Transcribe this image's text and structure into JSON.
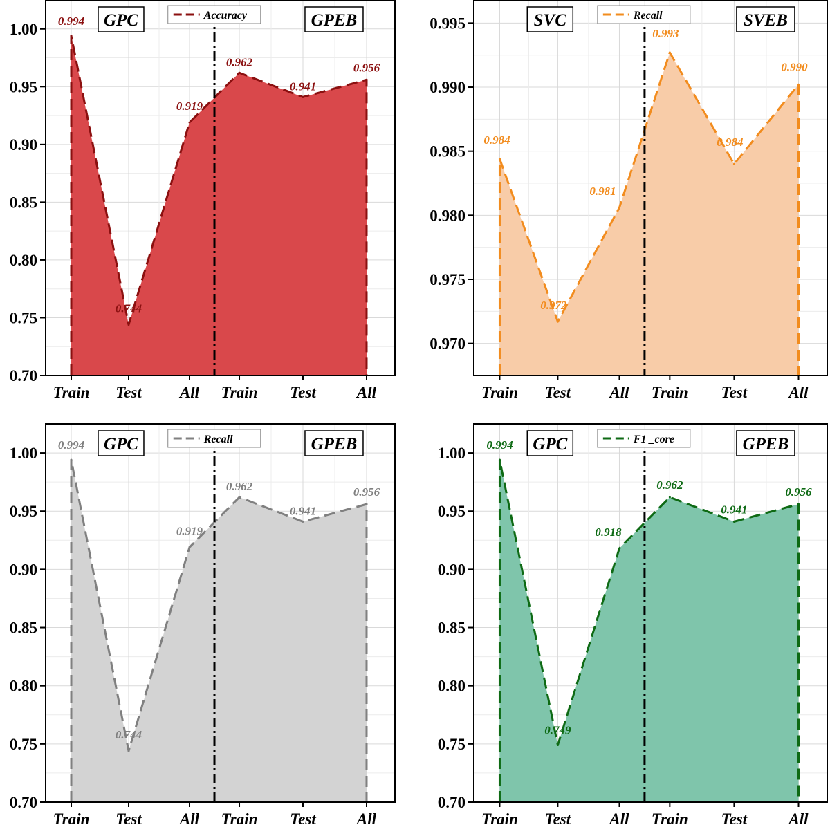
{
  "chart_data": [
    {
      "type": "area",
      "categories": [
        "Train",
        "Test",
        "All",
        "Train",
        "Test",
        "All"
      ],
      "group_labels": [
        "GPC",
        "GPEB"
      ],
      "series": [
        {
          "name": "Accuracy",
          "values": [
            0.994,
            0.744,
            0.919,
            0.962,
            0.941,
            0.956
          ]
        }
      ],
      "data_labels": [
        "0.994",
        "0.744",
        "0.919",
        "0.962",
        "0.941",
        "0.956"
      ],
      "ylim": [
        0.7,
        1.025
      ],
      "yticks": [
        "0.70",
        "0.75",
        "0.80",
        "0.85",
        "0.90",
        "0.95",
        "1.00"
      ],
      "divider_between": [
        2,
        3
      ],
      "line_color": "#8b1010",
      "fill_color": "#d9484b",
      "label_color": "#8b1010",
      "legend_position": "top-center",
      "grid": true
    },
    {
      "type": "area",
      "categories": [
        "Train",
        "Test",
        "All",
        "Train",
        "Test",
        "All"
      ],
      "group_labels": [
        "SVC",
        "SVEB"
      ],
      "series": [
        {
          "name": "Recall",
          "values": [
            0.9844,
            0.9717,
            0.9806,
            0.9927,
            0.984,
            0.9902
          ]
        }
      ],
      "data_labels": [
        "0.984",
        "0.972",
        "0.981",
        "0.993",
        "0.984",
        "0.990"
      ],
      "ylim": [
        0.9675,
        0.9968
      ],
      "yticks": [
        "0.970",
        "0.975",
        "0.980",
        "0.985",
        "0.990",
        "0.995"
      ],
      "divider_between": [
        2,
        3
      ],
      "line_color": "#f28c1e",
      "fill_color": "#f8cca8",
      "label_color": "#f28c1e",
      "legend_position": "top-center",
      "grid": true
    },
    {
      "type": "area",
      "categories": [
        "Train",
        "Test",
        "All",
        "Train",
        "Test",
        "All"
      ],
      "group_labels": [
        "GPC",
        "GPEB"
      ],
      "series": [
        {
          "name": "Recall",
          "values": [
            0.994,
            0.744,
            0.919,
            0.962,
            0.941,
            0.956
          ]
        }
      ],
      "data_labels": [
        "0.994",
        "0.744",
        "0.919",
        "0.962",
        "0.941",
        "0.956"
      ],
      "ylim": [
        0.7,
        1.025
      ],
      "yticks": [
        "0.70",
        "0.75",
        "0.80",
        "0.85",
        "0.90",
        "0.95",
        "1.00"
      ],
      "divider_between": [
        2,
        3
      ],
      "line_color": "#808080",
      "fill_color": "#d3d3d3",
      "label_color": "#808080",
      "legend_position": "top-center",
      "grid": true
    },
    {
      "type": "area",
      "categories": [
        "Train",
        "Test",
        "All",
        "Train",
        "Test",
        "All"
      ],
      "group_labels": [
        "GPC",
        "GPEB"
      ],
      "series": [
        {
          "name": "F1 _core",
          "values": [
            0.994,
            0.749,
            0.918,
            0.962,
            0.941,
            0.956
          ]
        }
      ],
      "data_labels": [
        "0.994",
        "0.749",
        "0.918",
        "0.962",
        "0.941",
        "0.956"
      ],
      "ylim": [
        0.7,
        1.025
      ],
      "yticks": [
        "0.70",
        "0.75",
        "0.80",
        "0.85",
        "0.90",
        "0.95",
        "1.00"
      ],
      "divider_between": [
        2,
        3
      ],
      "line_color": "#0e6a14",
      "fill_color": "#7fc5ab",
      "label_color": "#0e6a14",
      "legend_position": "top-center",
      "grid": true
    }
  ]
}
